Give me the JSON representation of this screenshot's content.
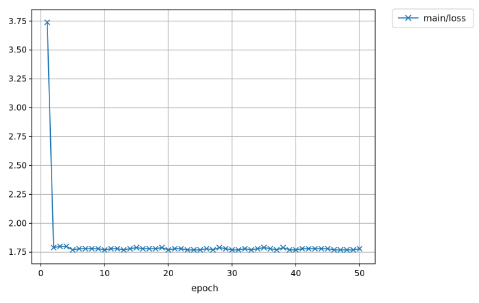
{
  "chart_data": {
    "type": "line",
    "title": "",
    "xlabel": "epoch",
    "ylabel": "",
    "xlim": [
      -1.45,
      52.45
    ],
    "ylim": [
      1.65,
      3.85
    ],
    "grid": true,
    "legend_position": "outside-top-right",
    "x_ticks": [
      0,
      10,
      20,
      30,
      40,
      50
    ],
    "y_ticks": [
      1.75,
      2.0,
      2.25,
      2.5,
      2.75,
      3.0,
      3.25,
      3.5,
      3.75
    ],
    "x_tick_labels": [
      "0",
      "10",
      "20",
      "30",
      "40",
      "50"
    ],
    "y_tick_labels": [
      "1.75",
      "2.00",
      "2.25",
      "2.50",
      "2.75",
      "3.00",
      "3.25",
      "3.50",
      "3.75"
    ],
    "series": [
      {
        "name": "main/loss",
        "color": "#1f77b4",
        "marker": "x",
        "x": [
          1,
          2,
          3,
          4,
          5,
          6,
          7,
          8,
          9,
          10,
          11,
          12,
          13,
          14,
          15,
          16,
          17,
          18,
          19,
          20,
          21,
          22,
          23,
          24,
          25,
          26,
          27,
          28,
          29,
          30,
          31,
          32,
          33,
          34,
          35,
          36,
          37,
          38,
          39,
          40,
          41,
          42,
          43,
          44,
          45,
          46,
          47,
          48,
          49,
          50
        ],
        "y": [
          3.74,
          1.79,
          1.8,
          1.8,
          1.77,
          1.78,
          1.78,
          1.78,
          1.78,
          1.77,
          1.78,
          1.78,
          1.77,
          1.78,
          1.79,
          1.78,
          1.78,
          1.78,
          1.79,
          1.77,
          1.78,
          1.78,
          1.77,
          1.77,
          1.77,
          1.78,
          1.77,
          1.79,
          1.78,
          1.77,
          1.77,
          1.78,
          1.77,
          1.78,
          1.79,
          1.78,
          1.77,
          1.79,
          1.77,
          1.77,
          1.78,
          1.78,
          1.78,
          1.78,
          1.78,
          1.77,
          1.77,
          1.77,
          1.77,
          1.78
        ]
      }
    ]
  }
}
